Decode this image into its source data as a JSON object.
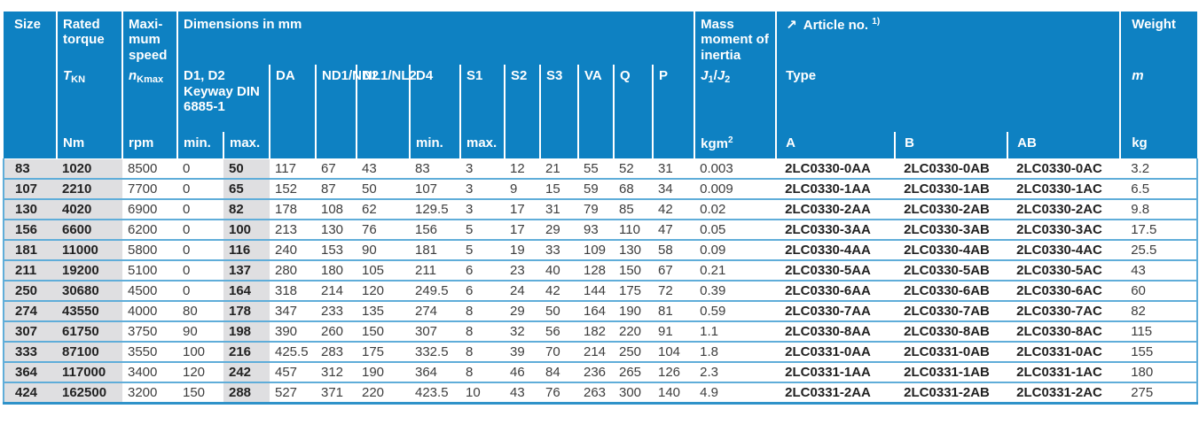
{
  "colors": {
    "header_blue": "#0e81c2",
    "row_line_blue": "#5fadd9",
    "bottom_border_blue": "#2f92c9",
    "shaded_column_grey": "#dfdfe1"
  },
  "table": {
    "header": {
      "size": {
        "title": "Size"
      },
      "torque": {
        "title": "Rated torque",
        "sym": "T",
        "sub": "KN",
        "unit": "Nm"
      },
      "speed": {
        "title": "Maxi-mum speed",
        "sym": "n",
        "sub": "Kmax",
        "unit": "rpm"
      },
      "dimensions": {
        "title": "Dimensions in mm"
      },
      "d1d2": {
        "title": "D1, D2 Keyway DIN 6885-1",
        "min": "min.",
        "max": "max."
      },
      "da": {
        "title": "DA"
      },
      "nd": {
        "title": "ND1/ND2"
      },
      "nl": {
        "title": "NL1/NL2"
      },
      "d4": {
        "title": "D4",
        "unit": "min."
      },
      "s1": {
        "title": "S1",
        "unit": "max."
      },
      "s2": {
        "title": "S2"
      },
      "s3": {
        "title": "S3"
      },
      "va": {
        "title": "VA"
      },
      "q": {
        "title": "Q"
      },
      "p": {
        "title": "P"
      },
      "inertia": {
        "title": "Mass moment of inertia",
        "j1": "J",
        "sub1": "1",
        "slash": "/",
        "j2": "J",
        "sub2": "2",
        "unit_base": "kgm",
        "unit_sup": "2"
      },
      "article": {
        "arrow": "↗",
        "title": "Article no.",
        "footnote": "1)",
        "type_label": "Type",
        "type_a": "A",
        "type_b": "B",
        "type_ab": "AB"
      },
      "weight": {
        "title": "Weight",
        "sym": "m",
        "unit": "kg"
      }
    },
    "rows": [
      [
        "83",
        "1020",
        "8500",
        "0",
        "50",
        "117",
        "67",
        "43",
        "83",
        "3",
        "12",
        "21",
        "55",
        "52",
        "31",
        "0.003",
        "2LC0330-0AA",
        "2LC0330-0AB",
        "2LC0330-0AC",
        "3.2"
      ],
      [
        "107",
        "2210",
        "7700",
        "0",
        "65",
        "152",
        "87",
        "50",
        "107",
        "3",
        "9",
        "15",
        "59",
        "68",
        "34",
        "0.009",
        "2LC0330-1AA",
        "2LC0330-1AB",
        "2LC0330-1AC",
        "6.5"
      ],
      [
        "130",
        "4020",
        "6900",
        "0",
        "82",
        "178",
        "108",
        "62",
        "129.5",
        "3",
        "17",
        "31",
        "79",
        "85",
        "42",
        "0.02",
        "2LC0330-2AA",
        "2LC0330-2AB",
        "2LC0330-2AC",
        "9.8"
      ],
      [
        "156",
        "6600",
        "6200",
        "0",
        "100",
        "213",
        "130",
        "76",
        "156",
        "5",
        "17",
        "29",
        "93",
        "110",
        "47",
        "0.05",
        "2LC0330-3AA",
        "2LC0330-3AB",
        "2LC0330-3AC",
        "17.5"
      ],
      [
        "181",
        "11000",
        "5800",
        "0",
        "116",
        "240",
        "153",
        "90",
        "181",
        "5",
        "19",
        "33",
        "109",
        "130",
        "58",
        "0.09",
        "2LC0330-4AA",
        "2LC0330-4AB",
        "2LC0330-4AC",
        "25.5"
      ],
      [
        "211",
        "19200",
        "5100",
        "0",
        "137",
        "280",
        "180",
        "105",
        "211",
        "6",
        "23",
        "40",
        "128",
        "150",
        "67",
        "0.21",
        "2LC0330-5AA",
        "2LC0330-5AB",
        "2LC0330-5AC",
        "43"
      ],
      [
        "250",
        "30680",
        "4500",
        "0",
        "164",
        "318",
        "214",
        "120",
        "249.5",
        "6",
        "24",
        "42",
        "144",
        "175",
        "72",
        "0.39",
        "2LC0330-6AA",
        "2LC0330-6AB",
        "2LC0330-6AC",
        "60"
      ],
      [
        "274",
        "43550",
        "4000",
        "80",
        "178",
        "347",
        "233",
        "135",
        "274",
        "8",
        "29",
        "50",
        "164",
        "190",
        "81",
        "0.59",
        "2LC0330-7AA",
        "2LC0330-7AB",
        "2LC0330-7AC",
        "82"
      ],
      [
        "307",
        "61750",
        "3750",
        "90",
        "198",
        "390",
        "260",
        "150",
        "307",
        "8",
        "32",
        "56",
        "182",
        "220",
        "91",
        "1.1",
        "2LC0330-8AA",
        "2LC0330-8AB",
        "2LC0330-8AC",
        "115"
      ],
      [
        "333",
        "87100",
        "3550",
        "100",
        "216",
        "425.5",
        "283",
        "175",
        "332.5",
        "8",
        "39",
        "70",
        "214",
        "250",
        "104",
        "1.8",
        "2LC0331-0AA",
        "2LC0331-0AB",
        "2LC0331-0AC",
        "155"
      ],
      [
        "364",
        "117000",
        "3400",
        "120",
        "242",
        "457",
        "312",
        "190",
        "364",
        "8",
        "46",
        "84",
        "236",
        "265",
        "126",
        "2.3",
        "2LC0331-1AA",
        "2LC0331-1AB",
        "2LC0331-1AC",
        "180"
      ],
      [
        "424",
        "162500",
        "3200",
        "150",
        "288",
        "527",
        "371",
        "220",
        "423.5",
        "10",
        "43",
        "76",
        "263",
        "300",
        "140",
        "4.9",
        "2LC0331-2AA",
        "2LC0331-2AB",
        "2LC0331-2AC",
        "275"
      ]
    ]
  }
}
